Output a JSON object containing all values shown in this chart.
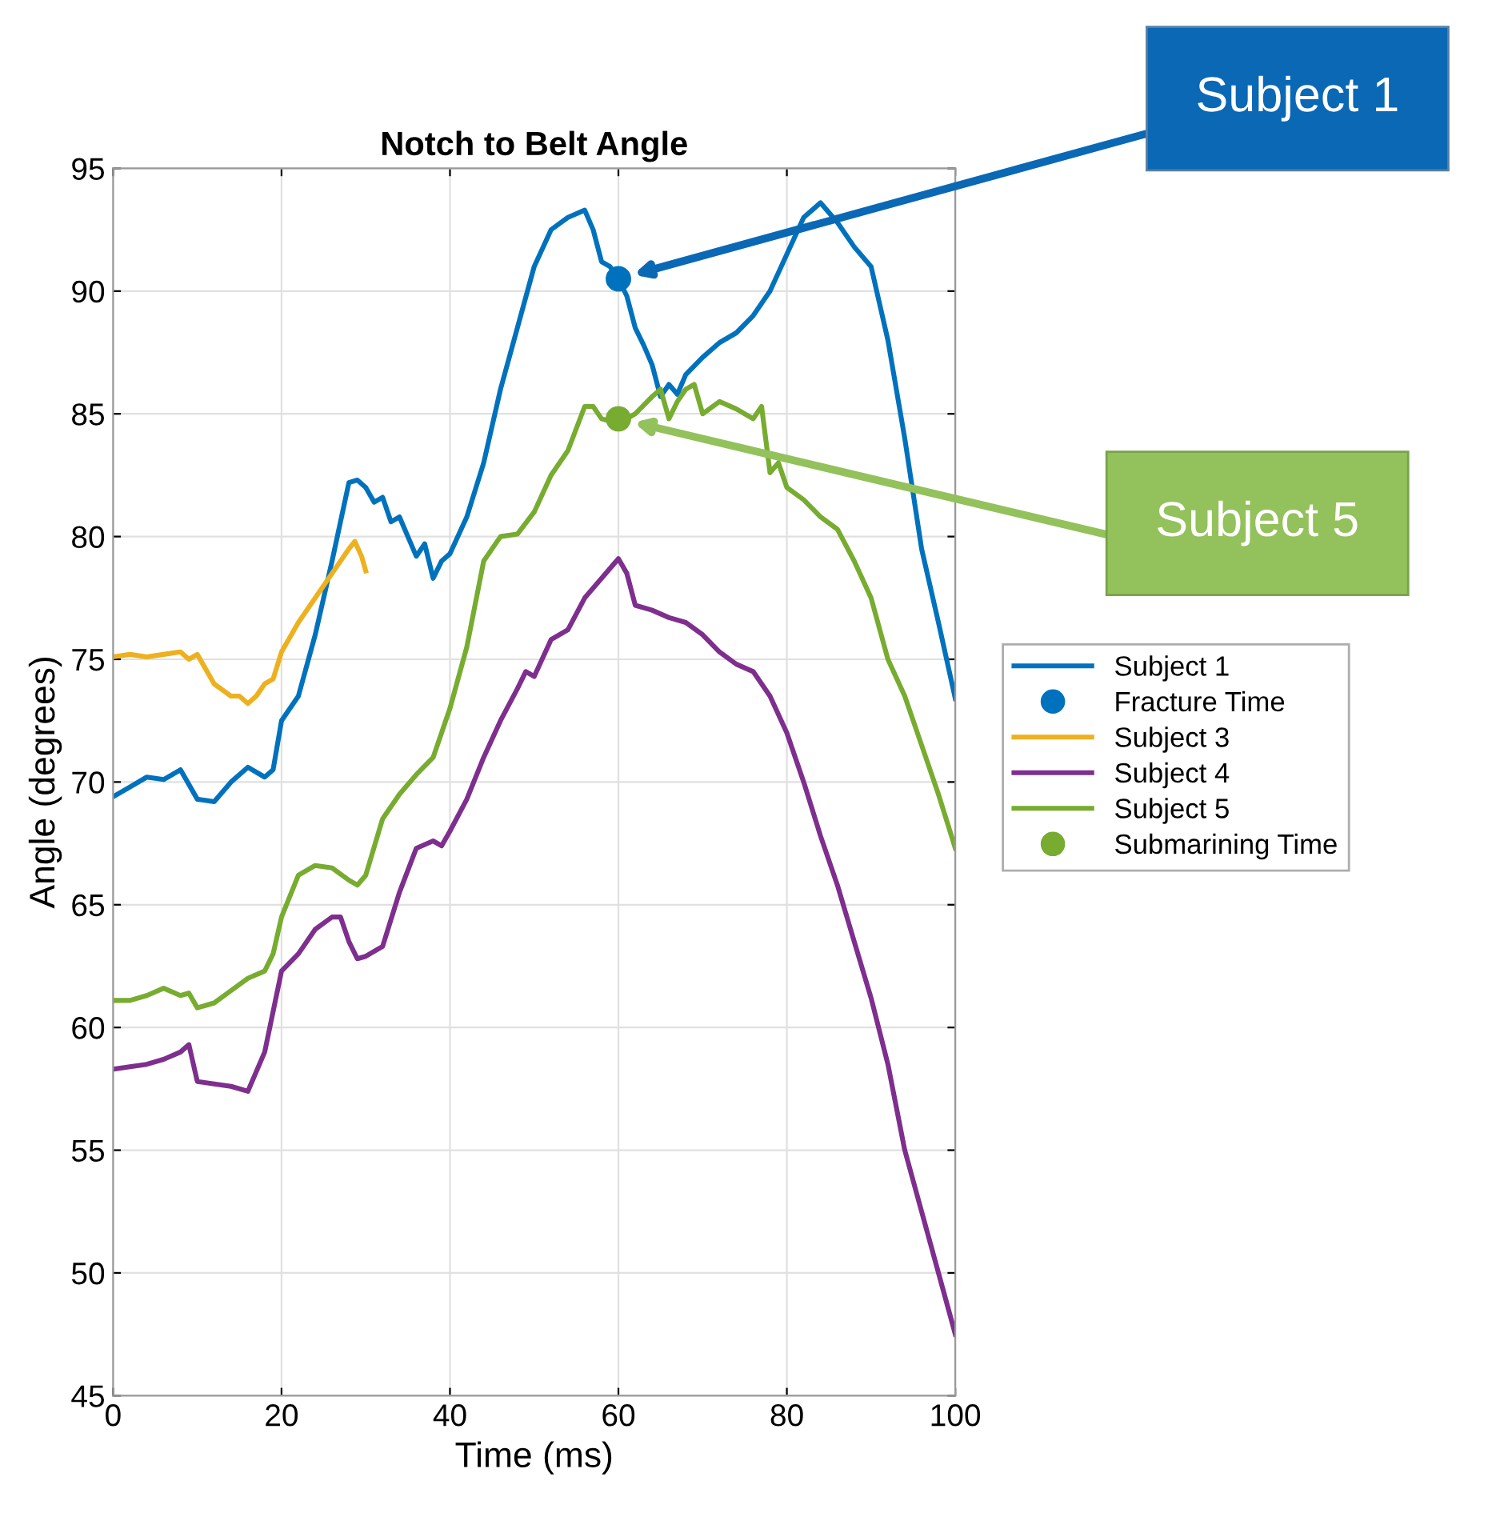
{
  "chart_data": {
    "type": "line",
    "title": "Notch to Belt Angle",
    "xlabel": "Time (ms)",
    "ylabel": "Angle (degrees)",
    "xlim": [
      0,
      100
    ],
    "ylim": [
      45,
      95
    ],
    "xticks": [
      0,
      20,
      40,
      60,
      80,
      100
    ],
    "yticks": [
      45,
      50,
      55,
      60,
      65,
      70,
      75,
      80,
      85,
      90,
      95
    ],
    "grid": true,
    "legend": "right",
    "series": [
      {
        "name": "Subject 1",
        "color": "#0072bd",
        "x": [
          0,
          2,
          4,
          6,
          8,
          10,
          12,
          14,
          16,
          18,
          19,
          20,
          22,
          24,
          26,
          28,
          29,
          30,
          31,
          32,
          33,
          34,
          35,
          36,
          37,
          38,
          39,
          40,
          42,
          44,
          46,
          48,
          50,
          52,
          54,
          56,
          57,
          58,
          59,
          60,
          61,
          62,
          63,
          64,
          65,
          66,
          67,
          68,
          70,
          72,
          74,
          76,
          78,
          80,
          82,
          84,
          86,
          88,
          90,
          92,
          94,
          96,
          98,
          100
        ],
        "values": [
          69.4,
          69.8,
          70.2,
          70.1,
          70.5,
          69.3,
          69.2,
          70,
          70.6,
          70.2,
          70.5,
          72.5,
          73.5,
          76,
          79,
          82.2,
          82.3,
          82,
          81.4,
          81.6,
          80.6,
          80.8,
          80,
          79.2,
          79.7,
          78.3,
          79,
          79.3,
          80.8,
          83,
          86,
          88.5,
          91,
          92.5,
          93,
          93.3,
          92.5,
          91.2,
          91,
          90.5,
          89.8,
          88.5,
          87.8,
          87,
          85.7,
          86.2,
          85.8,
          86.6,
          87.3,
          87.9,
          88.3,
          89,
          90,
          91.5,
          93,
          93.6,
          92.8,
          91.8,
          91,
          88,
          84,
          79.5,
          76.5,
          73.4
        ]
      },
      {
        "name": "Fracture Time",
        "type": "scatter",
        "marker": "circle",
        "color": "#0072bd",
        "x": [
          60
        ],
        "values": [
          90.5
        ]
      },
      {
        "name": "Subject 3",
        "color": "#edb120",
        "x": [
          0,
          2,
          4,
          6,
          8,
          9,
          10,
          12,
          14,
          15,
          16,
          17,
          18,
          19,
          20,
          22,
          24,
          26,
          28,
          28.7,
          29.5,
          30
        ],
        "values": [
          75.1,
          75.2,
          75.1,
          75.2,
          75.3,
          75,
          75.2,
          74,
          73.5,
          73.5,
          73.2,
          73.5,
          74,
          74.2,
          75.3,
          76.5,
          77.5,
          78.5,
          79.5,
          79.8,
          79.2,
          78.6
        ]
      },
      {
        "name": "Subject 4",
        "color": "#7e2f8e",
        "x": [
          0,
          2,
          4,
          6,
          8,
          9,
          10,
          12,
          14,
          16,
          18,
          20,
          22,
          24,
          26,
          27,
          28,
          29,
          30,
          32,
          34,
          36,
          38,
          39,
          40,
          42,
          44,
          46,
          48,
          49,
          50,
          52,
          54,
          56,
          58,
          60,
          61,
          62,
          64,
          66,
          68,
          70,
          72,
          74,
          76,
          78,
          80,
          82,
          84,
          86,
          88,
          90,
          92,
          94,
          96,
          98,
          100
        ],
        "values": [
          58.3,
          58.4,
          58.5,
          58.7,
          59,
          59.3,
          57.8,
          57.7,
          57.6,
          57.4,
          59,
          62.3,
          63,
          64,
          64.5,
          64.5,
          63.5,
          62.8,
          62.9,
          63.3,
          65.5,
          67.3,
          67.6,
          67.4,
          68,
          69.3,
          71,
          72.5,
          73.8,
          74.5,
          74.3,
          75.8,
          76.2,
          77.5,
          78.3,
          79.1,
          78.5,
          77.2,
          77,
          76.7,
          76.5,
          76,
          75.3,
          74.8,
          74.5,
          73.5,
          72,
          70,
          67.8,
          65.8,
          63.5,
          61.2,
          58.5,
          55,
          52.5,
          50,
          47.5
        ]
      },
      {
        "name": "Subject 5",
        "color": "#77ac30",
        "x": [
          0,
          2,
          4,
          6,
          8,
          9,
          10,
          12,
          14,
          16,
          18,
          19,
          20,
          22,
          24,
          26,
          28,
          29,
          30,
          32,
          34,
          36,
          38,
          40,
          42,
          44,
          46,
          48,
          50,
          52,
          54,
          56,
          57,
          58,
          59,
          60,
          62,
          64,
          65,
          66,
          67,
          68,
          69,
          70,
          72,
          74,
          76,
          77,
          78,
          79,
          80,
          82,
          84,
          86,
          88,
          90,
          92,
          94,
          96,
          98,
          100
        ],
        "values": [
          61.1,
          61.1,
          61.3,
          61.6,
          61.3,
          61.4,
          60.8,
          61,
          61.5,
          62,
          62.3,
          63,
          64.5,
          66.2,
          66.6,
          66.5,
          66,
          65.8,
          66.2,
          68.5,
          69.5,
          70.3,
          71,
          73,
          75.5,
          79,
          80,
          80.1,
          81,
          82.5,
          83.5,
          85.3,
          85.3,
          84.8,
          84.7,
          84.6,
          85,
          85.7,
          86,
          84.8,
          85.5,
          86,
          86.2,
          85,
          85.5,
          85.2,
          84.8,
          85.3,
          82.6,
          83,
          82,
          81.5,
          80.8,
          80.3,
          79,
          77.5,
          75,
          73.5,
          71.5,
          69.5,
          67.3
        ]
      },
      {
        "name": "Submarining Time",
        "type": "scatter",
        "marker": "circle",
        "color": "#77ac30",
        "x": [
          60
        ],
        "values": [
          84.8
        ]
      }
    ],
    "annotations": [
      "Subject 1",
      "Subject 5"
    ]
  }
}
